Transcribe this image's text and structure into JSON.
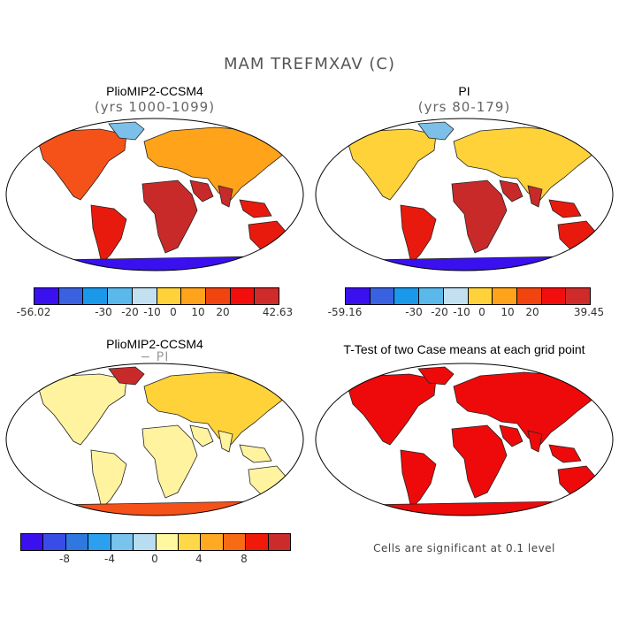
{
  "title": "MAM TREFMXAV (C)",
  "panels": {
    "top_left": {
      "title": "PlioMIP2-CCSM4",
      "subtitle": "(yrs 1000-1099)"
    },
    "top_right": {
      "title": "PI",
      "subtitle": "(yrs 80-179)"
    },
    "bottom_left": {
      "title": "PlioMIP2-CCSM4",
      "subtitle": "− PI"
    },
    "bottom_right": {
      "title": "T-Test of two Case means at each grid point",
      "note": "Cells are significant at 0.1 level"
    }
  },
  "colorbars": {
    "abs_colors": [
      "#3a10ee",
      "#3a62e0",
      "#1a98ea",
      "#5ab8ea",
      "#c2e0f0",
      "#ffd23a",
      "#ffa31a",
      "#f2440f",
      "#f30e0e",
      "#cf2b2b"
    ],
    "left_labels": {
      "min": "-56.02",
      "ticks": [
        "-30",
        "-20",
        "-10",
        "0",
        "10",
        "20"
      ],
      "max": "42.63"
    },
    "right_labels": {
      "min": "-59.16",
      "ticks": [
        "-30",
        "-20",
        "-10",
        "0",
        "10",
        "20"
      ],
      "max": "39.45"
    },
    "diff_colors": [
      "#3a10ee",
      "#3a4ce8",
      "#2e78e0",
      "#2aa0ee",
      "#78c4ec",
      "#b8ddf0",
      "#fff8a0",
      "#ffd84a",
      "#ffaa20",
      "#f86b15",
      "#f01a0a",
      "#cc2b2b"
    ],
    "diff_labels": [
      "-8",
      "-4",
      "0",
      "4",
      "8"
    ]
  },
  "map_colors": {
    "ocean": "#ffffff",
    "hot": "#e81a0e",
    "dark": "#c82a2a",
    "warm": "#f5521a",
    "orange": "#ffa31a",
    "yellow": "#ffd23a",
    "pale": "#fff3a0",
    "cold": "#7cc0ea",
    "ice": "#3a5ee0",
    "deep": "#3a10ee",
    "signif": "#ee0a0a"
  }
}
